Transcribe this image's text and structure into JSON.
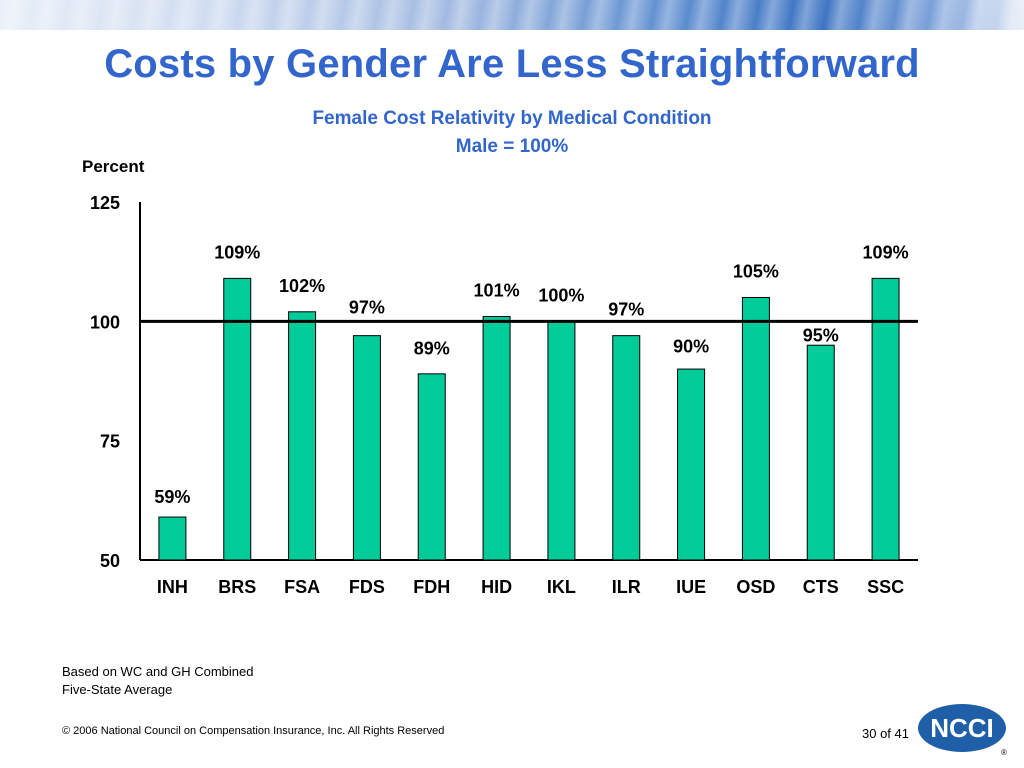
{
  "slide": {
    "title": "Costs by Gender Are Less Straightforward",
    "subtitle_line1": "Female Cost Relativity by Medical Condition",
    "subtitle_line2": "Male = 100%",
    "footnote_line1": "Based on WC and GH Combined",
    "footnote_line2": "Five-State Average",
    "copyright": "© 2006 National Council on Compensation Insurance, Inc. All Rights Reserved",
    "page_number": "30 of 41",
    "logo_text": "NCCI",
    "registered_mark": "®"
  },
  "colors": {
    "title": "#3366cc",
    "bar_fill": "#00cc99",
    "bar_stroke": "#000000",
    "logo_blue": "#1f5fa8"
  },
  "chart_data": {
    "type": "bar",
    "ylabel": "Percent",
    "xlabel": "",
    "ylim": [
      50,
      125
    ],
    "yticks": [
      50,
      75,
      100,
      125
    ],
    "reference_line": 100,
    "categories": [
      "INH",
      "BRS",
      "FSA",
      "FDS",
      "FDH",
      "HID",
      "IKL",
      "ILR",
      "IUE",
      "OSD",
      "CTS",
      "SSC"
    ],
    "values": [
      59,
      109,
      102,
      97,
      89,
      101,
      100,
      97,
      90,
      105,
      95,
      109
    ],
    "data_labels": [
      "59%",
      "109%",
      "102%",
      "97%",
      "89%",
      "101%",
      "100%",
      "97%",
      "90%",
      "105%",
      "95%",
      "109%"
    ],
    "grid": false,
    "legend": "none"
  }
}
